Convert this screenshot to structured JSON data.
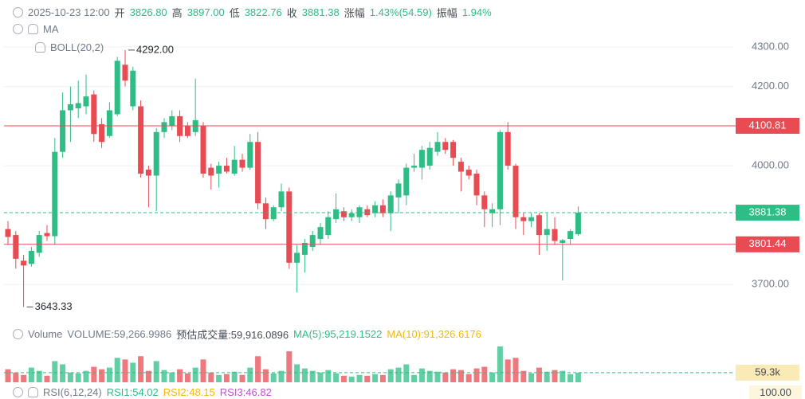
{
  "header": {
    "datetime": "2025-10-23 12:00",
    "open_label": "开",
    "open": "3826.80",
    "high_label": "高",
    "high": "3897.00",
    "low_label": "低",
    "low": "3822.76",
    "close_label": "收",
    "close": "3881.38",
    "change_label": "涨幅",
    "change": "1.43%(54.59)",
    "amplitude_label": "振幅",
    "amplitude": "1.94%",
    "ma": "MA",
    "boll": "BOLL(20,2)"
  },
  "volume_header": {
    "title": "Volume",
    "volume": "VOLUME:59,266.9986",
    "estimated": "预估成交量:59,916.0896",
    "ma5": "MA(5):95,219.1522",
    "ma10": "MA(10):91,326.6176"
  },
  "rsi_header": {
    "title": "RSI(6,12,24)",
    "rsi1": "RSI1:54.02",
    "rsi2": "RSI2:48.15",
    "rsi3": "RSI3:46.82",
    "axis_max": "100.00"
  },
  "chart_data": {
    "type": "candlestick",
    "up_color": "#2ebd85",
    "down_color": "#e84b52",
    "open": [
      3840,
      3825,
      3760,
      3752,
      3780,
      3830,
      3822,
      4035,
      4140,
      4145,
      4150,
      4180,
      4105,
      4075,
      4130,
      4255,
      4150,
      4150,
      3990,
      3975,
      4085,
      4100,
      4125,
      4100,
      4085,
      4100,
      3995,
      3980,
      4000,
      3980,
      4015,
      3995,
      4060,
      3905,
      3865,
      3895,
      3935,
      3755,
      3775,
      3795,
      3815,
      3825,
      3865,
      3885,
      3870,
      3870,
      3890,
      3880,
      3900,
      3880,
      3920,
      3925,
      3995,
      3995,
      4000,
      4035,
      4060,
      4060,
      4010,
      3990,
      3980,
      3925,
      3880,
      3890,
      4085,
      4000,
      3870,
      3860,
      3875,
      3825,
      3840,
      3805,
      3815,
      3826.8
    ],
    "high": [
      3860,
      3835,
      3775,
      3795,
      3835,
      3850,
      4070,
      4185,
      4200,
      4215,
      4230,
      4190,
      4120,
      4160,
      4275,
      4292,
      4250,
      4165,
      4000,
      4095,
      4120,
      4140,
      4140,
      4110,
      4220,
      4110,
      4005,
      4010,
      4020,
      4050,
      4030,
      4080,
      4085,
      3920,
      3900,
      3955,
      3945,
      3800,
      3815,
      3835,
      3855,
      3885,
      3930,
      3895,
      3890,
      3900,
      3900,
      3910,
      3915,
      3935,
      3965,
      4005,
      4030,
      4050,
      4060,
      4085,
      4070,
      4065,
      4020,
      4000,
      3990,
      3935,
      3905,
      4090,
      4110,
      4005,
      3880,
      3880,
      3880,
      3880,
      3870,
      3815,
      3840,
      3897
    ],
    "low": [
      3800,
      3740,
      3643.33,
      3745,
      3770,
      3810,
      3800,
      4020,
      4060,
      4120,
      4130,
      4060,
      4045,
      4070,
      4125,
      4200,
      4140,
      3970,
      3895,
      3885,
      4070,
      4090,
      4060,
      4070,
      4075,
      3970,
      3940,
      3945,
      3980,
      3975,
      3985,
      3990,
      3890,
      3840,
      3860,
      3885,
      3740,
      3680,
      3730,
      3785,
      3800,
      3815,
      3855,
      3860,
      3860,
      3855,
      3870,
      3870,
      3870,
      3835,
      3880,
      3900,
      3985,
      3965,
      3990,
      4025,
      4030,
      4000,
      3935,
      3965,
      3900,
      3845,
      3845,
      3850,
      3990,
      3840,
      3825,
      3845,
      3775,
      3785,
      3800,
      3710,
      3800,
      3822.76
    ],
    "close": [
      3820,
      3765,
      3748,
      3785,
      3825,
      3822,
      4035,
      4140,
      4155,
      4158,
      4175,
      4080,
      4060,
      4140,
      4265,
      4215,
      4240,
      3980,
      3975,
      4085,
      4110,
      4125,
      4075,
      4075,
      4115,
      3980,
      3975,
      4000,
      3985,
      4015,
      3995,
      4060,
      3905,
      3865,
      3895,
      3935,
      3755,
      3780,
      3805,
      3825,
      3845,
      3870,
      3890,
      3870,
      3880,
      3895,
      3875,
      3900,
      3880,
      3925,
      3955,
      3995,
      4000,
      4040,
      4045,
      4060,
      4040,
      4020,
      3985,
      3975,
      3925,
      3890,
      3890,
      4085,
      4000,
      3870,
      3860,
      3870,
      3825,
      3840,
      3810,
      3812,
      3835,
      3881.38
    ],
    "volume": [
      80000,
      60000,
      45000,
      90000,
      70000,
      40000,
      130000,
      110000,
      60000,
      55000,
      70000,
      95000,
      80000,
      90000,
      150000,
      140000,
      120000,
      160000,
      70000,
      130000,
      75000,
      60000,
      80000,
      55000,
      90000,
      140000,
      60000,
      45000,
      50000,
      65000,
      45000,
      90000,
      160000,
      80000,
      55000,
      70000,
      190000,
      110000,
      85000,
      70000,
      60000,
      75000,
      55000,
      40000,
      35000,
      45000,
      40000,
      50000,
      45000,
      80000,
      90000,
      110000,
      45000,
      85000,
      70000,
      65000,
      60000,
      80000,
      75000,
      50000,
      85000,
      95000,
      60000,
      220000,
      140000,
      150000,
      70000,
      55000,
      90000,
      65000,
      75000,
      70000,
      50000,
      59267
    ],
    "volume_value_label": "59.3k",
    "ylim": [
      3620,
      4330
    ],
    "yticks": [
      {
        "value": 4300,
        "label": "4300.00"
      },
      {
        "value": 4200,
        "label": "4200.00"
      },
      {
        "value": 4000,
        "label": "4000.00"
      },
      {
        "value": 3700,
        "label": "3700.00"
      }
    ],
    "grid": true,
    "price_lines": [
      {
        "value": 4100.81,
        "color": "#e84b52",
        "style": "solid"
      },
      {
        "value": 3881.38,
        "color": "#2ebd85",
        "style": "dashed"
      },
      {
        "value": 3801.44,
        "color": "#e84b52",
        "style": "solid"
      }
    ],
    "annotations": [
      {
        "value": 4292,
        "label": "4292.00",
        "at": "high"
      },
      {
        "value": 3643.33,
        "label": "3643.33",
        "at": "low"
      }
    ]
  }
}
